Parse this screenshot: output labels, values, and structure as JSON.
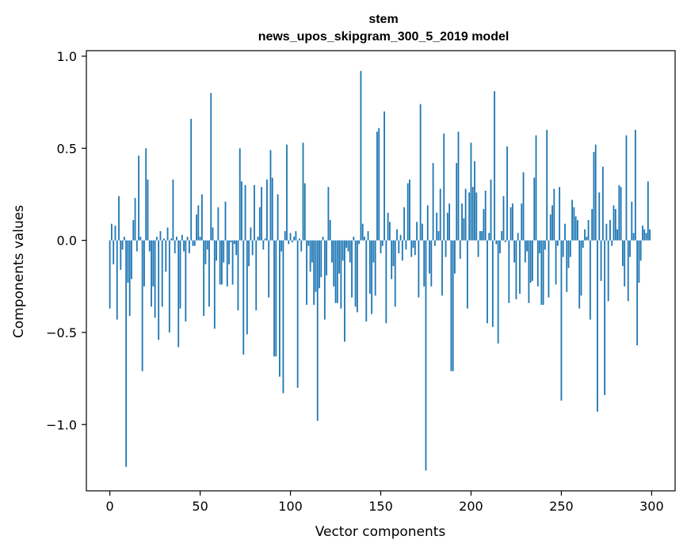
{
  "chart_data": {
    "type": "bar",
    "title": "stem",
    "subtitle": "news_upos_skipgram_300_5_2019 model",
    "xlabel": "Vector components",
    "ylabel": "Components values",
    "xlim": [
      -13,
      313
    ],
    "ylim": [
      -1.36,
      1.03
    ],
    "x_ticks": [
      0,
      50,
      100,
      150,
      200,
      250,
      300
    ],
    "x_tick_labels": [
      "0",
      "50",
      "100",
      "150",
      "200",
      "250",
      "300"
    ],
    "y_ticks": [
      -1.0,
      -0.5,
      0.0,
      0.5,
      1.0
    ],
    "y_tick_labels": [
      "−1.0",
      "−0.5",
      "0.0",
      "0.5",
      "1.0"
    ],
    "grid": false,
    "bar_color": "#1f77b4",
    "values": [
      -0.37,
      0.09,
      -0.13,
      0.08,
      -0.43,
      0.24,
      -0.16,
      -0.05,
      0.02,
      -1.23,
      -0.23,
      -0.41,
      -0.21,
      0.11,
      0.23,
      -0.06,
      0.46,
      0.02,
      -0.71,
      -0.25,
      0.5,
      0.33,
      -0.06,
      -0.36,
      -0.25,
      -0.42,
      0.02,
      -0.54,
      0.05,
      -0.36,
      0.01,
      -0.17,
      0.07,
      -0.5,
      0.01,
      0.33,
      -0.07,
      0.02,
      -0.58,
      -0.37,
      0.03,
      -0.06,
      -0.44,
      0.02,
      -0.07,
      0.66,
      -0.03,
      -0.03,
      0.14,
      0.19,
      0.02,
      0.25,
      -0.41,
      -0.13,
      -0.05,
      -0.36,
      0.8,
      0.07,
      -0.48,
      -0.11,
      0.18,
      -0.24,
      -0.24,
      -0.12,
      0.21,
      -0.25,
      -0.13,
      -0.01,
      -0.24,
      -0.02,
      -0.08,
      -0.38,
      0.5,
      0.32,
      -0.62,
      0.3,
      -0.51,
      -0.14,
      0.07,
      -0.08,
      0.3,
      -0.38,
      0.02,
      0.18,
      0.29,
      -0.05,
      0.01,
      0.33,
      -0.31,
      0.49,
      0.34,
      -0.63,
      -0.63,
      0.25,
      -0.74,
      -0.06,
      -0.83,
      0.05,
      0.52,
      -0.02,
      0.04,
      -0.01,
      0.02,
      0.05,
      -0.8,
      0.01,
      -0.06,
      0.53,
      0.31,
      -0.35,
      -0.03,
      -0.17,
      -0.12,
      -0.35,
      -0.28,
      -0.98,
      -0.26,
      -0.2,
      0.02,
      -0.43,
      -0.19,
      0.29,
      0.11,
      -0.12,
      -0.25,
      -0.34,
      -0.34,
      -0.18,
      -0.37,
      -0.11,
      -0.55,
      -0.04,
      -0.06,
      -0.12,
      -0.31,
      0.02,
      -0.36,
      -0.39,
      -0.02,
      0.92,
      0.09,
      0.02,
      -0.44,
      0.05,
      -0.29,
      -0.4,
      -0.12,
      -0.3,
      0.59,
      0.61,
      -0.07,
      -0.03,
      0.7,
      -0.45,
      0.15,
      0.1,
      -0.21,
      -0.14,
      -0.36,
      0.06,
      -0.07,
      0.03,
      -0.11,
      0.18,
      -0.05,
      0.31,
      0.33,
      -0.09,
      -0.04,
      -0.08,
      0.1,
      -0.31,
      0.74,
      0.09,
      -0.25,
      -1.25,
      0.19,
      -0.18,
      -0.25,
      0.42,
      -0.03,
      0.15,
      0.05,
      0.28,
      -0.3,
      0.58,
      -0.09,
      0.15,
      0.2,
      -0.71,
      -0.71,
      -0.18,
      0.42,
      0.59,
      -0.1,
      0.2,
      0.12,
      0.28,
      -0.37,
      0.26,
      0.53,
      0.29,
      0.43,
      0.26,
      -0.09,
      0.05,
      0.05,
      0.17,
      0.27,
      -0.45,
      0.04,
      0.33,
      -0.47,
      0.81,
      -0.02,
      -0.56,
      -0.07,
      0.05,
      0.24,
      -0.01,
      0.51,
      -0.34,
      0.18,
      0.2,
      -0.12,
      -0.32,
      0.04,
      -0.29,
      0.2,
      0.37,
      -0.12,
      -0.06,
      -0.34,
      -0.23,
      -0.22,
      0.34,
      0.57,
      -0.25,
      -0.07,
      -0.35,
      -0.35,
      -0.05,
      0.6,
      -0.31,
      0.14,
      0.19,
      0.28,
      -0.24,
      -0.03,
      0.29,
      -0.87,
      -0.09,
      0.09,
      -0.28,
      -0.15,
      -0.09,
      0.22,
      0.18,
      0.13,
      0.11,
      -0.37,
      -0.3,
      -0.04,
      0.06,
      0.02,
      0.11,
      -0.43,
      0.17,
      0.48,
      0.52,
      -0.93,
      0.26,
      -0.22,
      0.4,
      -0.84,
      0.09,
      -0.33,
      0.11,
      -0.03,
      0.19,
      0.17,
      0.06,
      0.3,
      0.29,
      -0.14,
      -0.25,
      0.57,
      -0.33,
      -0.09,
      0.21,
      0.04,
      0.6,
      -0.57,
      -0.23,
      -0.11,
      0.08,
      0.06,
      0.04,
      0.32,
      0.06
    ]
  }
}
